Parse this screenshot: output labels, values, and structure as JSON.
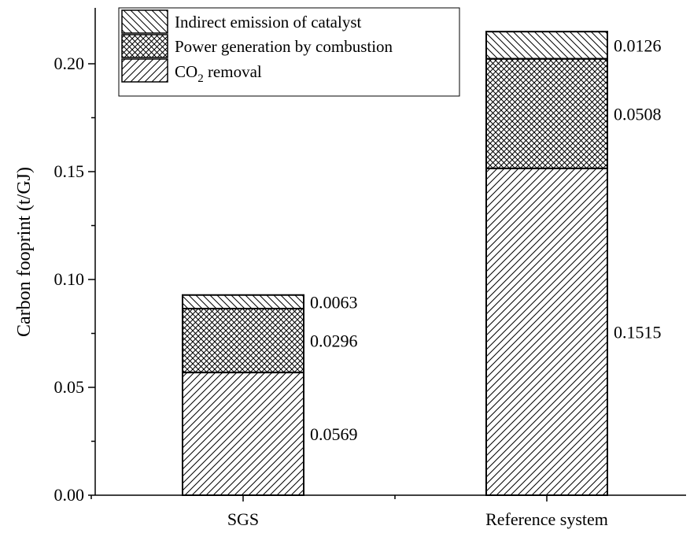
{
  "chart_data": {
    "type": "bar",
    "stacked": true,
    "title": "",
    "xlabel": "",
    "ylabel": "Carbon fooprint (t/GJ)",
    "ylim": [
      0,
      0.22
    ],
    "yticks": [
      "0.00",
      "0.05",
      "0.10",
      "0.15",
      "0.20"
    ],
    "categories": [
      "SGS",
      "Reference system"
    ],
    "series": [
      {
        "name": "CO2 removal",
        "values": [
          0.0569,
          0.1515
        ],
        "labels": [
          "0.0569",
          "0.1515"
        ],
        "pattern": "diagonal-hatch"
      },
      {
        "name": "Power generation by combustion",
        "values": [
          0.0296,
          0.0508
        ],
        "labels": [
          "0.0296",
          "0.0508"
        ],
        "pattern": "crosshatch"
      },
      {
        "name": "Indirect emission of catalyst",
        "values": [
          0.0063,
          0.0126
        ],
        "labels": [
          "0.0063",
          "0.0126"
        ],
        "pattern": "back-diagonal-hatch"
      }
    ],
    "legend": {
      "placement": "top-left",
      "entries": [
        {
          "text": "Indirect emission of catalyst"
        },
        {
          "text": "Power generation by combustion"
        },
        {
          "text_main": "CO",
          "text_sub": "2",
          "text_rest": " removal"
        }
      ]
    },
    "grid": false,
    "colors": {
      "bar_fill": "#ffffff",
      "stroke": "#000000"
    }
  }
}
